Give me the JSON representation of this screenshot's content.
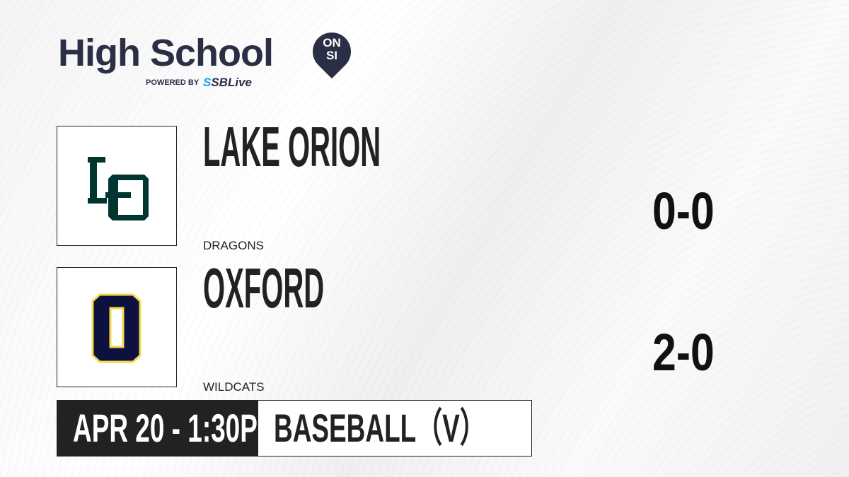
{
  "brand": {
    "title": "High School",
    "badge_top": "ON",
    "badge_bottom": "SI",
    "powered_by": "POWERED BY",
    "partner_icon": "S",
    "partner": "SBLive"
  },
  "teams": [
    {
      "name": "LAKE ORION",
      "mascot": "DRAGONS",
      "score": "0-0",
      "logo_text": "LO",
      "logo_color": "#00362f"
    },
    {
      "name": "OXFORD",
      "mascot": "WILDCATS",
      "score": "2-0",
      "logo_text": "O",
      "logo_color": "#0d1140",
      "logo_outline": "#f2d84a"
    }
  ],
  "game": {
    "datetime": "APR 20 - 1:30PM",
    "sport": "BASEBALL（V）"
  }
}
